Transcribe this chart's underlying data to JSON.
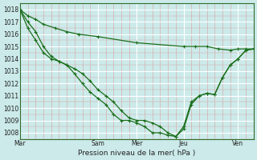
{
  "xlabel": "Pression niveau de la mer( hPa )",
  "bg_color": "#cceaea",
  "grid_major_color": "#ffffff",
  "grid_minor_color": "#d8a0a0",
  "line_color": "#1a6e1a",
  "marker_color": "#1a6e1a",
  "ylim": [
    1007.5,
    1018.5
  ],
  "yticks": [
    1008,
    1009,
    1010,
    1011,
    1012,
    1013,
    1014,
    1015,
    1016,
    1017,
    1018
  ],
  "xlim": [
    0,
    10
  ],
  "day_labels": [
    "Mar",
    "Sam",
    "Mer",
    "Jeu",
    "Ven"
  ],
  "day_positions": [
    0,
    3.33,
    5.0,
    7.0,
    9.33
  ],
  "series1_x": [
    0,
    0.33,
    0.67,
    1.0,
    1.5,
    2.0,
    2.5,
    3.33,
    5.0,
    7.0,
    7.5,
    8.0,
    8.5,
    9.0,
    9.33,
    9.67,
    10
  ],
  "series1_y": [
    1018,
    1017.5,
    1017.2,
    1016.8,
    1016.5,
    1016.2,
    1016.0,
    1015.8,
    1015.3,
    1015.0,
    1015.0,
    1015.0,
    1014.8,
    1014.7,
    1014.8,
    1014.8,
    1014.8
  ],
  "series2_x": [
    0,
    0.33,
    0.67,
    1.0,
    1.33,
    1.67,
    2.0,
    2.33,
    2.67,
    3.0,
    3.33,
    3.67,
    4.0,
    4.33,
    4.67,
    5.0,
    5.33,
    5.67,
    6.0,
    6.33,
    6.67,
    7.0,
    7.33,
    7.67,
    8.0,
    8.33,
    8.67,
    9.0,
    9.33,
    9.67,
    10
  ],
  "series2_y": [
    1018,
    1017,
    1016.2,
    1015.0,
    1014.2,
    1013.8,
    1013.5,
    1013.2,
    1012.8,
    1012.2,
    1011.5,
    1011.0,
    1010.5,
    1009.8,
    1009.2,
    1009.0,
    1009.0,
    1008.8,
    1008.5,
    1008.0,
    1007.7,
    1008.3,
    1010.3,
    1011.0,
    1011.2,
    1011.1,
    1012.5,
    1013.5,
    1014.0,
    1014.7,
    1014.8
  ],
  "series3_x": [
    0,
    0.33,
    0.67,
    1.0,
    1.33,
    1.67,
    2.0,
    2.33,
    2.67,
    3.0,
    3.33,
    3.67,
    4.0,
    4.33,
    4.67,
    5.0,
    5.33,
    5.67,
    6.0,
    6.33,
    6.67,
    7.0,
    7.33,
    7.67,
    8.0,
    8.33,
    8.67,
    9.0,
    9.33,
    9.67,
    10
  ],
  "series3_y": [
    1018,
    1016.5,
    1015.5,
    1014.5,
    1014.0,
    1013.8,
    1013.5,
    1012.8,
    1012.0,
    1011.3,
    1010.8,
    1010.3,
    1009.5,
    1009.0,
    1009.0,
    1008.8,
    1008.5,
    1008.0,
    1008.0,
    1007.8,
    1007.7,
    1008.5,
    1010.5,
    1011.0,
    1011.2,
    1011.1,
    1012.5,
    1013.5,
    1014.0,
    1014.7,
    1014.8
  ]
}
